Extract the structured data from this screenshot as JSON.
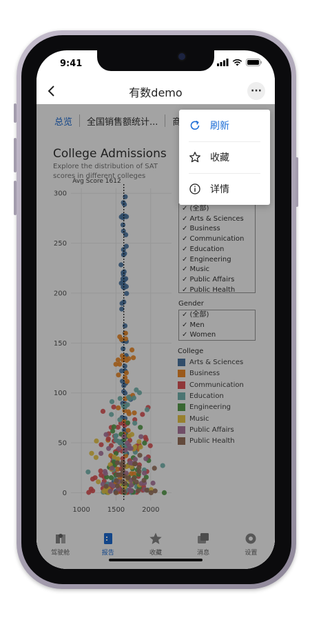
{
  "status_bar": {
    "time": "9:41"
  },
  "nav": {
    "title": "有数demo",
    "more_label": "···"
  },
  "tabs": [
    {
      "label": "总览",
      "active": true
    },
    {
      "label": "全国销售额统计...",
      "active": false
    },
    {
      "label": "商",
      "active": false
    }
  ],
  "chart": {
    "title": "College Admissions",
    "subtitle": "Explore the distribution of SAT scores in different colleges"
  },
  "chart_data": {
    "type": "scatter",
    "title": "College Admissions",
    "subtitle": "Explore the distribution of SAT scores in different colleges",
    "xlim": [
      850,
      2300
    ],
    "ylim": [
      -8,
      305
    ],
    "x_ticks": [
      1000,
      1500,
      2000
    ],
    "y_ticks": [
      0,
      50,
      100,
      150,
      200,
      250,
      300
    ],
    "reference_line": {
      "label": "Avg Score 1612",
      "x": 1612
    },
    "grid": true,
    "series": [
      {
        "name": "Arts & Sciences",
        "color": "#4e79a7"
      },
      {
        "name": "Business",
        "color": "#f28e2b"
      },
      {
        "name": "Communication",
        "color": "#e15759"
      },
      {
        "name": "Education",
        "color": "#76b7b2"
      },
      {
        "name": "Engineering",
        "color": "#59a14f"
      },
      {
        "name": "Music",
        "color": "#edc948"
      },
      {
        "name": "Public Affairs",
        "color": "#b07aa1"
      },
      {
        "name": "Public Health",
        "color": "#9c755f"
      }
    ]
  },
  "filters": {
    "college_items": [
      "(全部)",
      "Arts & Sciences",
      "Business",
      "Communication",
      "Education",
      "Engineering",
      "Music",
      "Public Affairs",
      "Public Health"
    ],
    "gender_title": "Gender",
    "gender_items": [
      "(全部)",
      "Men",
      "Women"
    ],
    "legend_title": "College"
  },
  "menu": {
    "items": [
      {
        "label": "刷新",
        "icon": "refresh-icon"
      },
      {
        "label": "收藏",
        "icon": "star-icon"
      },
      {
        "label": "详情",
        "icon": "info-icon"
      }
    ]
  },
  "tabbar": {
    "items": [
      {
        "label": "驾驶舱",
        "icon": "cockpit-icon"
      },
      {
        "label": "报告",
        "icon": "report-icon",
        "active": true
      },
      {
        "label": "收藏",
        "icon": "star-icon"
      },
      {
        "label": "消息",
        "icon": "message-icon"
      },
      {
        "label": "设置",
        "icon": "settings-icon"
      }
    ]
  }
}
